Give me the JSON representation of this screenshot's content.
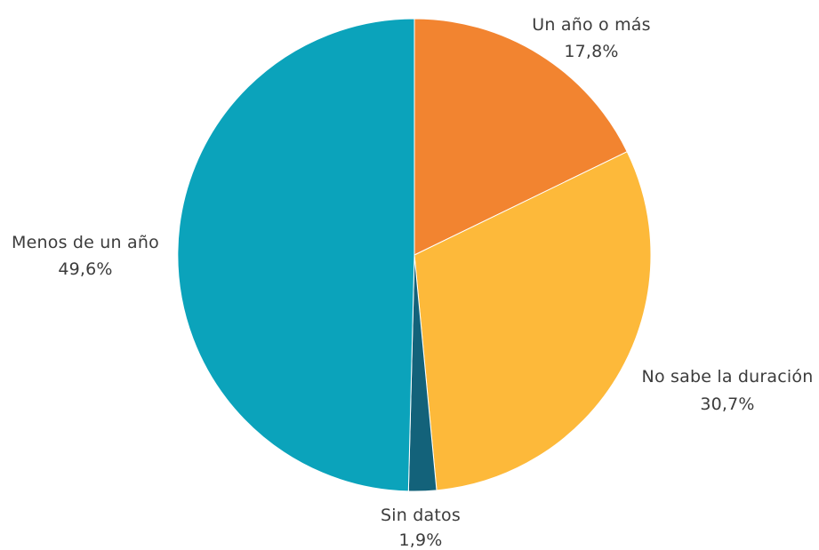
{
  "chart_data": {
    "type": "pie",
    "title": "",
    "start_angle_deg": 0,
    "direction": "clockwise",
    "slices": [
      {
        "label": "Un año o más",
        "value": 17.8,
        "value_label": "17,8%",
        "color": "#F28430"
      },
      {
        "label": "No sabe la duración",
        "value": 30.7,
        "value_label": "30,7%",
        "color": "#FDB93A"
      },
      {
        "label": "Sin datos",
        "value": 1.9,
        "value_label": "1,9%",
        "color": "#13627A"
      },
      {
        "label": "Menos de un año",
        "value": 49.6,
        "value_label": "49,6%",
        "color": "#0BA3BB"
      }
    ],
    "legend": "none"
  }
}
